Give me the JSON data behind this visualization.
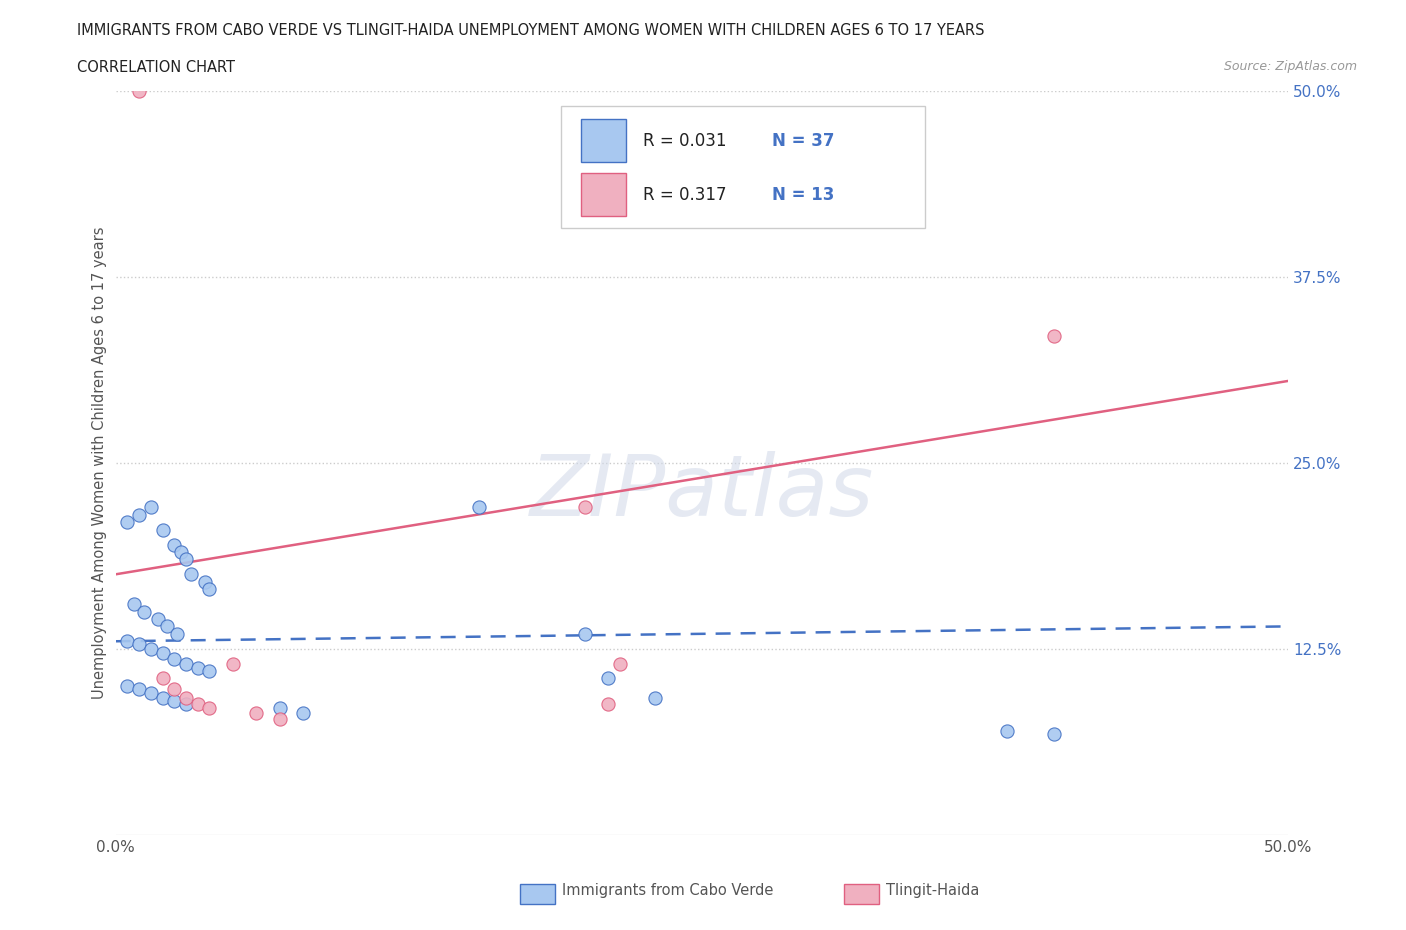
{
  "title_line1": "IMMIGRANTS FROM CABO VERDE VS TLINGIT-HAIDA UNEMPLOYMENT AMONG WOMEN WITH CHILDREN AGES 6 TO 17 YEARS",
  "title_line2": "CORRELATION CHART",
  "source_text": "Source: ZipAtlas.com",
  "ylabel": "Unemployment Among Women with Children Ages 6 to 17 years",
  "xlim": [
    0.0,
    0.5
  ],
  "ylim": [
    0.0,
    0.5
  ],
  "ytick_values": [
    0.125,
    0.25,
    0.375,
    0.5
  ],
  "ytick_labels": [
    "12.5%",
    "25.0%",
    "37.5%",
    "50.0%"
  ],
  "background_color": "#ffffff",
  "cabo_verde_fill": "#a8c8f0",
  "cabo_verde_edge": "#4472c4",
  "tlingit_fill": "#f0b0c0",
  "tlingit_edge": "#e06080",
  "cabo_line_color": "#4472c4",
  "tlingit_line_color": "#e06080",
  "cabo_R": 0.031,
  "cabo_N": 37,
  "tlingit_R": 0.317,
  "tlingit_N": 13,
  "legend_cabo": "Immigrants from Cabo Verde",
  "legend_tlingit": "Tlingit-Haida",
  "watermark": "ZIPatlas",
  "cabo_line_y0": 0.13,
  "cabo_line_y1": 0.14,
  "tlingit_line_y0": 0.175,
  "tlingit_line_y1": 0.305,
  "cabo_verde_points": [
    [
      0.005,
      0.21
    ],
    [
      0.01,
      0.215
    ],
    [
      0.015,
      0.22
    ],
    [
      0.02,
      0.205
    ],
    [
      0.025,
      0.195
    ],
    [
      0.028,
      0.19
    ],
    [
      0.03,
      0.185
    ],
    [
      0.032,
      0.175
    ],
    [
      0.038,
      0.17
    ],
    [
      0.04,
      0.165
    ],
    [
      0.008,
      0.155
    ],
    [
      0.012,
      0.15
    ],
    [
      0.018,
      0.145
    ],
    [
      0.022,
      0.14
    ],
    [
      0.026,
      0.135
    ],
    [
      0.005,
      0.13
    ],
    [
      0.01,
      0.128
    ],
    [
      0.015,
      0.125
    ],
    [
      0.02,
      0.122
    ],
    [
      0.025,
      0.118
    ],
    [
      0.03,
      0.115
    ],
    [
      0.035,
      0.112
    ],
    [
      0.04,
      0.11
    ],
    [
      0.005,
      0.1
    ],
    [
      0.01,
      0.098
    ],
    [
      0.015,
      0.095
    ],
    [
      0.02,
      0.092
    ],
    [
      0.025,
      0.09
    ],
    [
      0.03,
      0.088
    ],
    [
      0.07,
      0.085
    ],
    [
      0.08,
      0.082
    ],
    [
      0.155,
      0.22
    ],
    [
      0.2,
      0.135
    ],
    [
      0.21,
      0.105
    ],
    [
      0.23,
      0.092
    ],
    [
      0.38,
      0.07
    ],
    [
      0.4,
      0.068
    ]
  ],
  "tlingit_points": [
    [
      0.01,
      0.5
    ],
    [
      0.02,
      0.105
    ],
    [
      0.025,
      0.098
    ],
    [
      0.03,
      0.092
    ],
    [
      0.035,
      0.088
    ],
    [
      0.04,
      0.085
    ],
    [
      0.05,
      0.115
    ],
    [
      0.06,
      0.082
    ],
    [
      0.07,
      0.078
    ],
    [
      0.2,
      0.22
    ],
    [
      0.215,
      0.115
    ],
    [
      0.4,
      0.335
    ],
    [
      0.21,
      0.088
    ]
  ]
}
